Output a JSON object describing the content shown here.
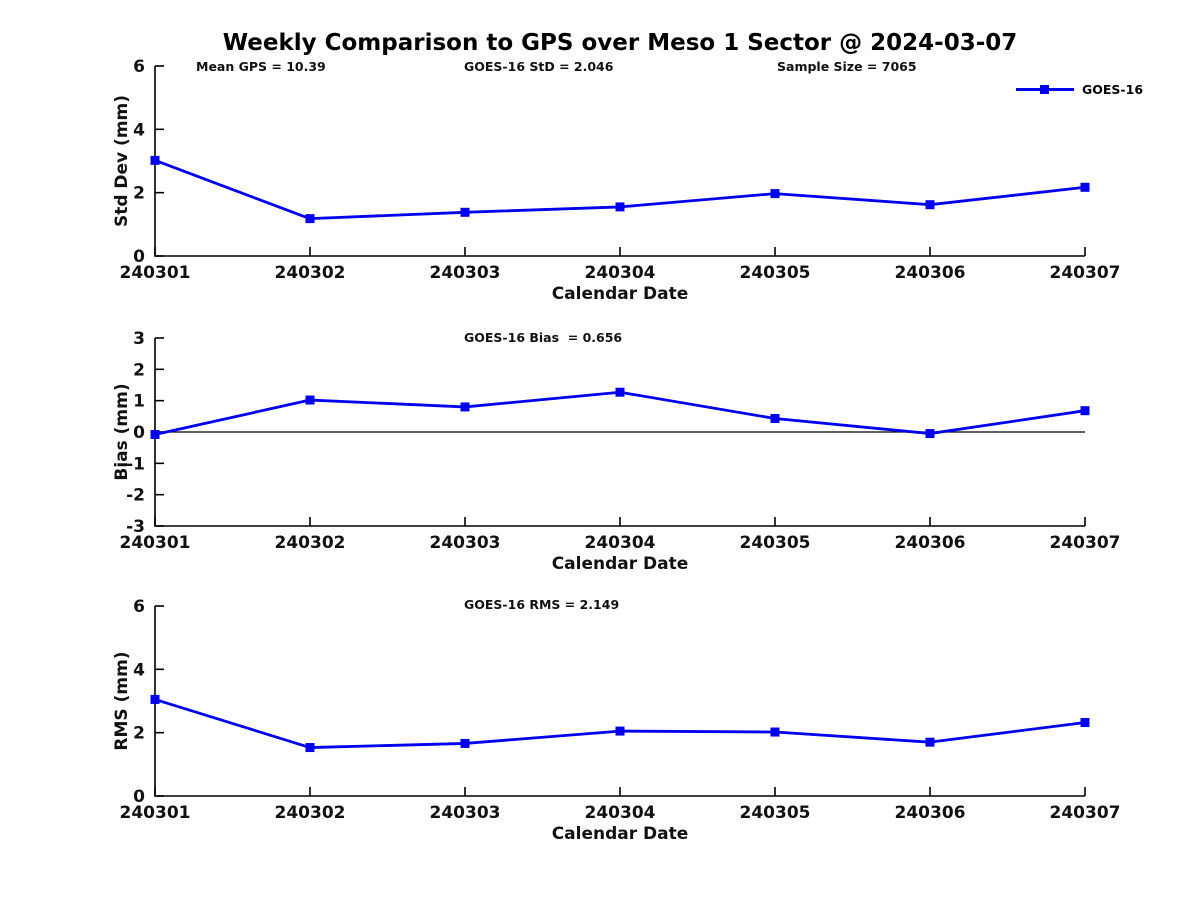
{
  "title": "Weekly Comparison to GPS over Meso 1 Sector @ 2024-03-07",
  "annotations": {
    "mean_gps": "Mean GPS = 10.39",
    "goes16_std": "GOES-16 StD = 2.046",
    "sample_size": "Sample Size = 7065"
  },
  "legend": {
    "label": "GOES-16",
    "position": "top-right"
  },
  "colors": {
    "line": "#0000ee",
    "axis": "#000000",
    "text": "#111111",
    "zero_line": "#000000",
    "background": "#ffffff"
  },
  "chart_data": [
    {
      "type": "line",
      "name": "std-dev",
      "title": "",
      "xlabel": "Calendar Date",
      "ylabel": "Std Dev (mm)",
      "categories": [
        "240301",
        "240302",
        "240303",
        "240304",
        "240305",
        "240306",
        "240307"
      ],
      "series": [
        {
          "name": "GOES-16",
          "values": [
            3.02,
            1.18,
            1.38,
            1.55,
            1.97,
            1.62,
            2.17
          ]
        }
      ],
      "ylim": [
        0,
        6
      ],
      "yticks": [
        0,
        2,
        4,
        6
      ],
      "grid": false,
      "zero_line": false,
      "legend_entries": [
        "GOES-16"
      ]
    },
    {
      "type": "line",
      "name": "bias",
      "title": "GOES-16 Bias  = 0.656",
      "xlabel": "Calendar Date",
      "ylabel": "Bias (mm)",
      "categories": [
        "240301",
        "240302",
        "240303",
        "240304",
        "240305",
        "240306",
        "240307"
      ],
      "series": [
        {
          "name": "GOES-16",
          "values": [
            -0.08,
            1.02,
            0.8,
            1.27,
            0.43,
            -0.05,
            0.68
          ]
        }
      ],
      "ylim": [
        -3,
        3
      ],
      "yticks": [
        3,
        2,
        1,
        0,
        -1,
        -2,
        -3
      ],
      "grid": false,
      "zero_line": true,
      "legend_entries": [
        "GOES-16"
      ]
    },
    {
      "type": "line",
      "name": "rms",
      "title": "GOES-16 RMS = 2.149",
      "xlabel": "Calendar Date",
      "ylabel": "RMS (mm)",
      "categories": [
        "240301",
        "240302",
        "240303",
        "240304",
        "240305",
        "240306",
        "240307"
      ],
      "series": [
        {
          "name": "GOES-16",
          "values": [
            3.05,
            1.53,
            1.66,
            2.05,
            2.02,
            1.7,
            2.32
          ]
        }
      ],
      "ylim": [
        0,
        6
      ],
      "yticks": [
        0,
        2,
        4,
        6
      ],
      "grid": false,
      "zero_line": false,
      "legend_entries": [
        "GOES-16"
      ]
    }
  ]
}
